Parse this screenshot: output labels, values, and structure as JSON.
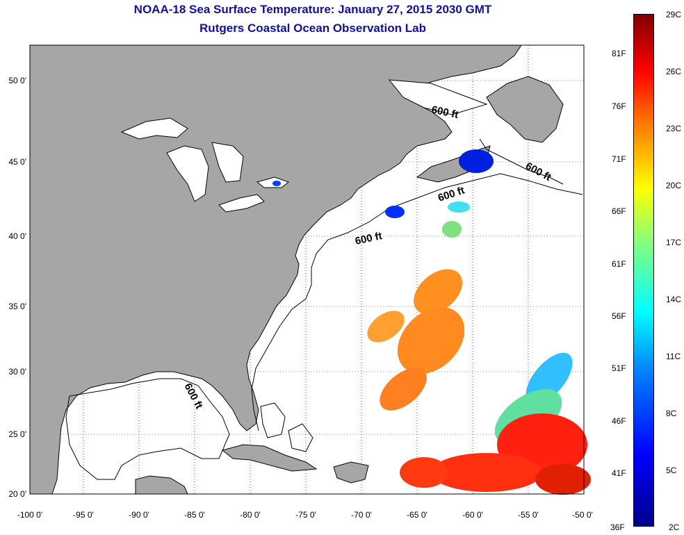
{
  "title": "NOAA-18 Sea Surface Temperature:  January 27, 2015 2030 GMT",
  "subtitle": "Rutgers Coastal Ocean Observation Lab",
  "axes": {
    "lon_labels": [
      "-100 0'",
      "-95 0'",
      "-90 0'",
      "-85 0'",
      "-80 0'",
      "-75 0'",
      "-70 0'",
      "-65 0'",
      "-60 0'",
      "-55 0'",
      "-50 0'"
    ],
    "lat_labels": [
      "50 0'",
      "45 0'",
      "40 0'",
      "35 0'",
      "30 0'",
      "25 0'",
      "20 0'"
    ]
  },
  "contour_labels": [
    "600 ft",
    "600 ft",
    "600 ft",
    "600 ft",
    "600 ft"
  ],
  "colorbar": {
    "celsius": [
      "29C",
      "26C",
      "23C",
      "20C",
      "17C",
      "14C",
      "11C",
      "8C",
      "5C",
      "2C"
    ],
    "fahrenheit": [
      "81F",
      "76F",
      "71F",
      "66F",
      "61F",
      "56F",
      "51F",
      "46F",
      "41F",
      "36F"
    ]
  },
  "colors": {
    "land": "#a6a6a6",
    "ocean": "#ffffff",
    "title": "#1010a0"
  }
}
